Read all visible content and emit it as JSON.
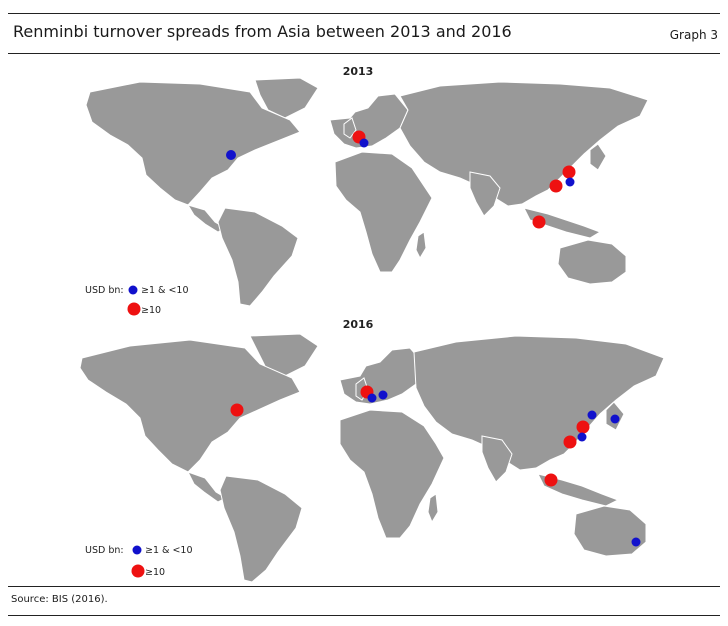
{
  "header": {
    "title": "Renminbi turnover spreads from Asia between 2013 and 2016",
    "graph_label": "Graph 3"
  },
  "footer": {
    "source": "Source: BIS (2016)."
  },
  "colors": {
    "land": "#999999",
    "blue": "#1111cc",
    "red": "#ee1111"
  },
  "panels": [
    {
      "title": "2013",
      "legend": {
        "label": "USD bn:",
        "small": "≥1 & <10",
        "large": "≥10"
      },
      "markers": [
        {
          "place": "United States East",
          "class": "small"
        },
        {
          "place": "United Kingdom",
          "class": "large"
        },
        {
          "place": "France",
          "class": "small"
        },
        {
          "place": "Taiwan",
          "class": "small"
        },
        {
          "place": "Shanghai",
          "class": "large"
        },
        {
          "place": "Hong Kong",
          "class": "large"
        },
        {
          "place": "Singapore",
          "class": "large"
        }
      ]
    },
    {
      "title": "2016",
      "legend": {
        "label": "USD bn:",
        "small": "≥1 & <10",
        "large": "≥10"
      },
      "markers": [
        {
          "place": "United States East",
          "class": "large"
        },
        {
          "place": "United Kingdom",
          "class": "large"
        },
        {
          "place": "France",
          "class": "small"
        },
        {
          "place": "Switzerland",
          "class": "small"
        },
        {
          "place": "Korea",
          "class": "small"
        },
        {
          "place": "Japan",
          "class": "small"
        },
        {
          "place": "Shanghai",
          "class": "large"
        },
        {
          "place": "Taiwan",
          "class": "small"
        },
        {
          "place": "Hong Kong",
          "class": "large"
        },
        {
          "place": "Singapore",
          "class": "large"
        },
        {
          "place": "Australia",
          "class": "small"
        }
      ]
    }
  ]
}
